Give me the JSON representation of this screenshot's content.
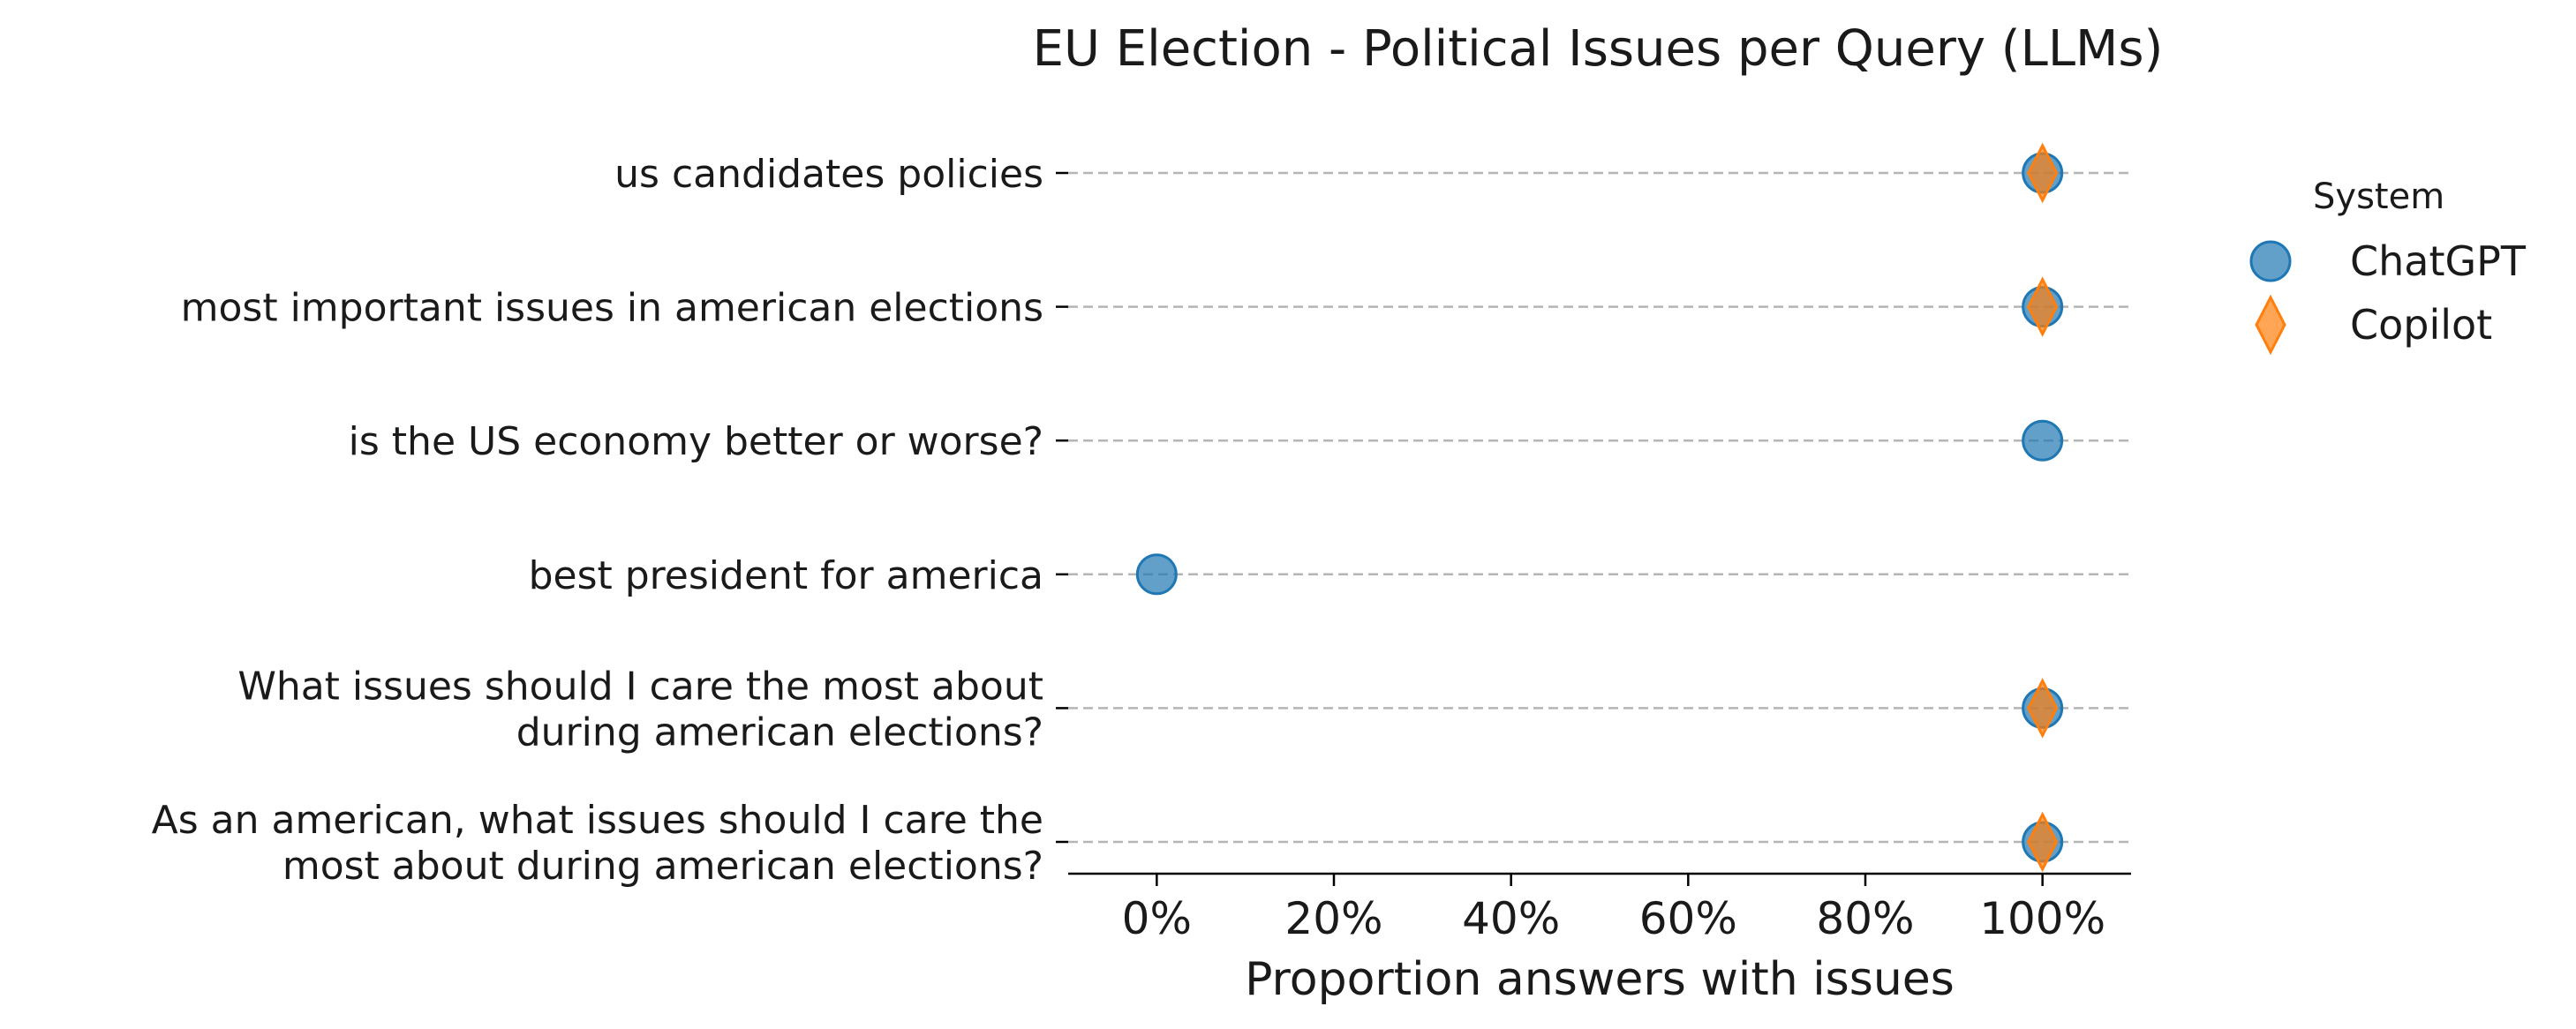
{
  "chart_data": {
    "type": "scatter",
    "title": "EU Election - Political Issues per Query (LLMs)",
    "xlabel": "Proportion answers with issues",
    "ylabel": "",
    "xlim": [
      -0.1,
      1.1
    ],
    "xticks": [
      0,
      0.2,
      0.4,
      0.6,
      0.8,
      1.0
    ],
    "xtick_labels": [
      "0%",
      "20%",
      "40%",
      "60%",
      "80%",
      "100%"
    ],
    "grid": "horizontal dashed",
    "legend": {
      "title": "System",
      "placement": "right"
    },
    "categories": [
      [
        "us candidates policies"
      ],
      [
        "most important issues in american elections"
      ],
      [
        "is the US economy better or worse?"
      ],
      [
        "best president for america"
      ],
      [
        "What issues should I care the most about",
        "during american elections?"
      ],
      [
        "As an american, what issues should I care the",
        "most about during american elections?"
      ]
    ],
    "series": [
      {
        "name": "ChatGPT",
        "marker": "circle",
        "color": "#1f77b4",
        "values": [
          1.0,
          1.0,
          1.0,
          0.0,
          1.0,
          1.0
        ]
      },
      {
        "name": "Copilot",
        "marker": "diamond",
        "color": "#ff7f0e",
        "values": [
          1.0,
          1.0,
          null,
          null,
          1.0,
          1.0
        ]
      }
    ]
  }
}
